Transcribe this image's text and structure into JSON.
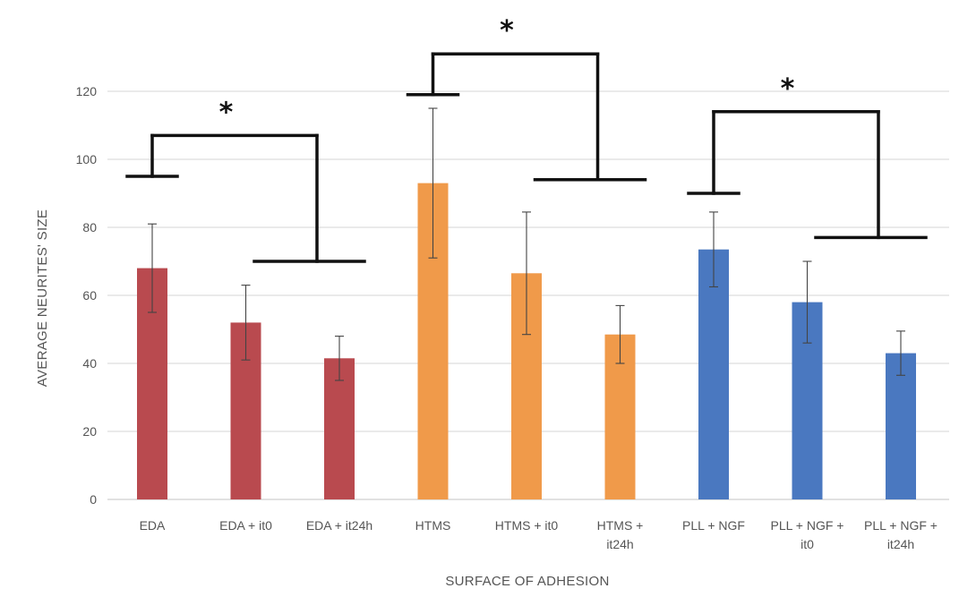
{
  "chart_data": {
    "type": "bar",
    "title": "",
    "xlabel": "SURFACE OF ADHESION",
    "ylabel": "AVERAGE NEURITES' SIZE",
    "ylim": [
      0,
      130
    ],
    "yticks": [
      0,
      20,
      40,
      60,
      80,
      100,
      120
    ],
    "grid": true,
    "legend": "none",
    "categories": [
      [
        "EDA"
      ],
      [
        "EDA + it0"
      ],
      [
        "EDA + it24h"
      ],
      [
        "HTMS"
      ],
      [
        "HTMS + it0"
      ],
      [
        "HTMS +",
        "it24h"
      ],
      [
        "PLL + NGF"
      ],
      [
        "PLL + NGF +",
        "it0"
      ],
      [
        "PLL + NGF +",
        "it24h"
      ]
    ],
    "values": [
      68,
      52,
      41.5,
      93,
      66.5,
      48.5,
      73.5,
      58,
      43
    ],
    "errors": [
      13,
      11,
      6.5,
      22,
      18,
      8.5,
      11,
      12,
      6.5
    ],
    "colors": [
      "#b94a4f",
      "#b94a4f",
      "#b94a4f",
      "#f09a4a",
      "#f09a4a",
      "#f09a4a",
      "#4a78c0",
      "#4a78c0",
      "#4a78c0"
    ],
    "significance": [
      {
        "from": 0,
        "to": 2,
        "left_y": 95,
        "top_y": 107,
        "right_y": 70,
        "label": "*"
      },
      {
        "from": 3,
        "to": 5,
        "left_y": 119,
        "top_y": 131,
        "right_y": 94,
        "label": "*"
      },
      {
        "from": 6,
        "to": 8,
        "left_y": 90,
        "top_y": 114,
        "right_y": 77,
        "label": "*"
      }
    ]
  }
}
